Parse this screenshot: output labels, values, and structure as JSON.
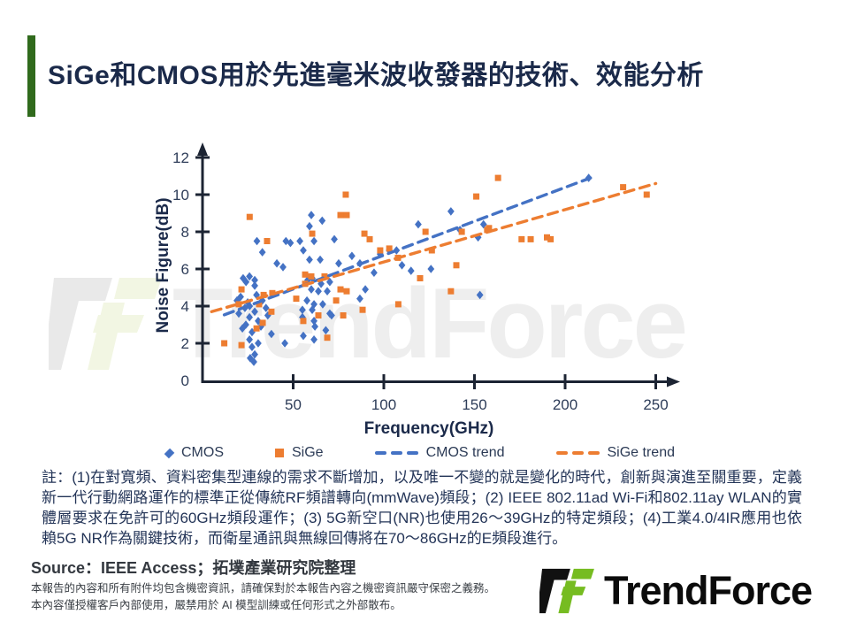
{
  "header": {
    "title": "SiGe和CMOS用於先進毫米波收發器的技術、效能分析"
  },
  "watermark": {
    "text": "TrendForce"
  },
  "note": {
    "text": "註：(1)在對寬頻、資料密集型連線的需求不斷增加，以及唯一不變的就是變化的時代，創新與演進至關重要，定義新一代行動網路運作的標準正從傳統RF頻譜轉向(mmWave)頻段；(2) IEEE 802.11ad Wi-Fi和802.11ay WLAN的實體層要求在免許可的60GHz頻段運作；(3) 5G新空口(NR)也使用26～39GHz的特定頻段；(4)工業4.0/4IR應用也依賴5G NR作為關鍵技術，而衛星通訊與無線回傳將在70～86GHz的E頻段進行。"
  },
  "footer": {
    "source": "Source：IEEE Access；拓墣產業研究院整理",
    "disclaimer_line1": "本報告的內容和所有附件均包含機密資訊，請確保對於本報告內容之機密資訊嚴守保密之義務。",
    "disclaimer_line2": "本內容僅授權客戶內部使用，嚴禁用於 AI 模型訓練或任何形式之外部散布。",
    "logo_text": "TrendForce"
  },
  "colors": {
    "accent_green": "#306A1C",
    "logo_green": "#76BC21",
    "title_navy": "#1B2A4A",
    "cmos_blue": "#4472C4",
    "sige_orange": "#ED7D31",
    "axis": "#1C2433"
  },
  "chart_data": {
    "type": "scatter",
    "xlabel": "Frequency(GHz)",
    "ylabel": "Noise Figure(dB)",
    "xlim": [
      0,
      265
    ],
    "ylim": [
      0,
      12.6
    ],
    "x_ticks": [
      50,
      100,
      150,
      200,
      250
    ],
    "y_ticks": [
      0,
      2,
      4,
      6,
      8,
      10,
      12
    ],
    "grid": false,
    "legend": [
      "CMOS",
      "SiGe",
      "CMOS trend",
      "SiGe trend"
    ],
    "legend_position": "bottom",
    "series": [
      {
        "name": "CMOS",
        "type": "scatter",
        "marker": "diamond",
        "color": "#4472C4",
        "points": [
          [
            19,
            4.3
          ],
          [
            20,
            3.6
          ],
          [
            21,
            4.5
          ],
          [
            22,
            2.8
          ],
          [
            22.4,
            5.5
          ],
          [
            23.4,
            3.9
          ],
          [
            23.9,
            3.0
          ],
          [
            24,
            5.3
          ],
          [
            24.9,
            4.2
          ],
          [
            25.9,
            5.6
          ],
          [
            25.9,
            3.4
          ],
          [
            25.9,
            2.2
          ],
          [
            26,
            4.0
          ],
          [
            26.3,
            1.2
          ],
          [
            27.3,
            2.6
          ],
          [
            27.3,
            1.8
          ],
          [
            28.3,
            1.0
          ],
          [
            28.8,
            5.4
          ],
          [
            28.8,
            5.1
          ],
          [
            28.8,
            3.7
          ],
          [
            28.8,
            1.4
          ],
          [
            29.8,
            4.6
          ],
          [
            30,
            7.5
          ],
          [
            30.7,
            3.2
          ],
          [
            30.7,
            2.0
          ],
          [
            32.2,
            2.9
          ],
          [
            33,
            6.9
          ],
          [
            33,
            4.3
          ],
          [
            35,
            3.9
          ],
          [
            36,
            3.5
          ],
          [
            38,
            2.5
          ],
          [
            41,
            6.3
          ],
          [
            44.4,
            6.1
          ],
          [
            45.4,
            2.0
          ],
          [
            46,
            7.5
          ],
          [
            48.5,
            7.4
          ],
          [
            53.7,
            7.5
          ],
          [
            55.1,
            3.8
          ],
          [
            55.1,
            3.4
          ],
          [
            55.6,
            7.0
          ],
          [
            55.6,
            2.4
          ],
          [
            57.6,
            4.3
          ],
          [
            58,
            5.4
          ],
          [
            59,
            8.3
          ],
          [
            59,
            6.5
          ],
          [
            60,
            8.9
          ],
          [
            60,
            4.9
          ],
          [
            60.5,
            5.5
          ],
          [
            60.5,
            3.8
          ],
          [
            61.5,
            7.5
          ],
          [
            61.5,
            4.1
          ],
          [
            61.5,
            3.2
          ],
          [
            61.5,
            2.2
          ],
          [
            62,
            2.9
          ],
          [
            63.9,
            4.8
          ],
          [
            64.9,
            6.5
          ],
          [
            65.4,
            5.2
          ],
          [
            66,
            8.6
          ],
          [
            66.3,
            4.1
          ],
          [
            68,
            2.7
          ],
          [
            68.8,
            4.8
          ],
          [
            70.2,
            5.3
          ],
          [
            70.2,
            3.6
          ],
          [
            71.2,
            3.5
          ],
          [
            72.7,
            7.6
          ],
          [
            75.1,
            6.3
          ],
          [
            82.4,
            6.7
          ],
          [
            86.8,
            6.3
          ],
          [
            86.8,
            4.4
          ],
          [
            89.8,
            4.9
          ],
          [
            94.6,
            5.8
          ],
          [
            98,
            6.8
          ],
          [
            103,
            7.0
          ],
          [
            107,
            7.0
          ],
          [
            110,
            6.2
          ],
          [
            115,
            5.9
          ],
          [
            119,
            8.4
          ],
          [
            126,
            6.0
          ],
          [
            137,
            9.1
          ],
          [
            142,
            8.1
          ],
          [
            152,
            7.7
          ],
          [
            153,
            4.6
          ],
          [
            155,
            8.4
          ],
          [
            213,
            10.9
          ]
        ]
      },
      {
        "name": "SiGe",
        "type": "scatter",
        "marker": "square",
        "color": "#ED7D31",
        "points": [
          [
            12,
            2.0
          ],
          [
            20,
            4.1
          ],
          [
            21.5,
            4.9
          ],
          [
            21.5,
            1.9
          ],
          [
            26,
            8.8
          ],
          [
            29.8,
            2.8
          ],
          [
            31.2,
            4.1
          ],
          [
            33.2,
            3.1
          ],
          [
            33.7,
            4.6
          ],
          [
            35.6,
            7.5
          ],
          [
            38,
            3.7
          ],
          [
            38.5,
            4.7
          ],
          [
            51.7,
            4.4
          ],
          [
            55.6,
            3.2
          ],
          [
            56.6,
            5.7
          ],
          [
            56.6,
            5.2
          ],
          [
            60,
            5.6
          ],
          [
            60.5,
            7.9
          ],
          [
            63.9,
            3.5
          ],
          [
            67.3,
            5.6
          ],
          [
            68.8,
            2.3
          ],
          [
            73.7,
            4.3
          ],
          [
            76.1,
            8.9
          ],
          [
            76.1,
            4.9
          ],
          [
            77.6,
            3.5
          ],
          [
            79,
            10.0
          ],
          [
            79.5,
            8.9
          ],
          [
            79.5,
            4.8
          ],
          [
            88.3,
            3.8
          ],
          [
            89.3,
            7.9
          ],
          [
            92.2,
            7.6
          ],
          [
            98,
            7.0
          ],
          [
            103,
            7.1
          ],
          [
            107.8,
            6.6
          ],
          [
            108,
            4.1
          ],
          [
            120,
            5.5
          ],
          [
            123,
            8.0
          ],
          [
            126.5,
            7.0
          ],
          [
            137,
            4.8
          ],
          [
            140,
            6.2
          ],
          [
            143,
            8.0
          ],
          [
            151,
            9.9
          ],
          [
            157,
            8.1
          ],
          [
            158,
            8.2
          ],
          [
            163,
            10.9
          ],
          [
            176,
            7.6
          ],
          [
            181,
            7.6
          ],
          [
            190,
            7.7
          ],
          [
            192,
            7.6
          ],
          [
            232,
            10.4
          ],
          [
            245,
            10.0
          ]
        ]
      },
      {
        "name": "CMOS trend",
        "type": "dashed-line",
        "color": "#4472C4",
        "points": [
          [
            12,
            3.53
          ],
          [
            214,
            10.9
          ]
        ]
      },
      {
        "name": "SiGe trend",
        "type": "dashed-line",
        "color": "#ED7D31",
        "points": [
          [
            5,
            3.7
          ],
          [
            250,
            10.6
          ]
        ]
      }
    ]
  }
}
